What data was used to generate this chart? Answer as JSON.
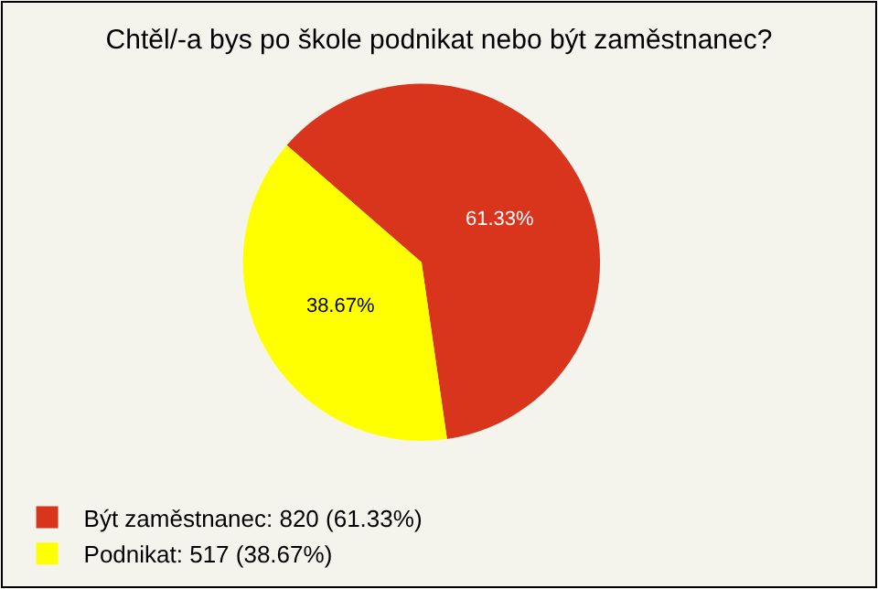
{
  "chart_data": {
    "type": "pie",
    "title": "Chtěl/-a bys po škole podnikat nebo být zaměstnanec?",
    "categories": [
      "Být zaměstnanec: 820 (61.33%)",
      "Podnikat: 517 (38.67%)"
    ],
    "values": [
      61.33,
      38.67
    ],
    "colors": [
      "#d9351c",
      "#ffff00"
    ],
    "value_labels": [
      "61.33%",
      "38.67%"
    ],
    "legend": "bottom left"
  }
}
